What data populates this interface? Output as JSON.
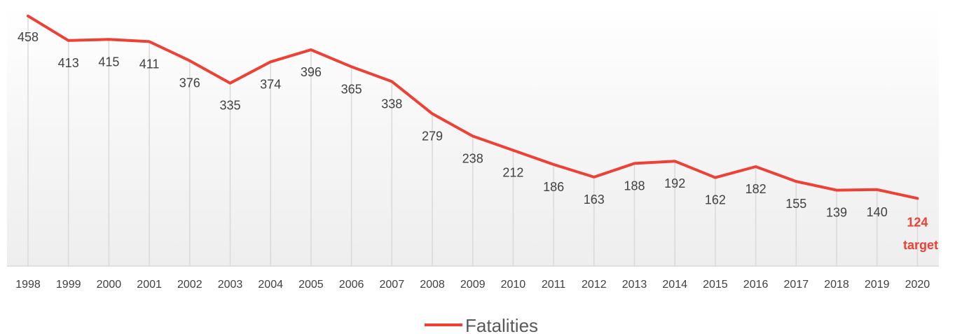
{
  "chart_data": {
    "type": "line",
    "title": "",
    "xlabel": "",
    "ylabel": "",
    "categories": [
      "1998",
      "1999",
      "2000",
      "2001",
      "2002",
      "2003",
      "2004",
      "2005",
      "2006",
      "2007",
      "2008",
      "2009",
      "2010",
      "2011",
      "2012",
      "2013",
      "2014",
      "2015",
      "2016",
      "2017",
      "2018",
      "2019",
      "2020"
    ],
    "series": [
      {
        "name": "Fatalities",
        "color": "#ee4035",
        "values": [
          458,
          413,
          415,
          411,
          376,
          335,
          374,
          396,
          365,
          338,
          279,
          238,
          212,
          186,
          163,
          188,
          192,
          162,
          182,
          155,
          139,
          140,
          124
        ]
      }
    ],
    "data_labels": [
      "458",
      "413",
      "415",
      "411",
      "376",
      "335",
      "374",
      "396",
      "365",
      "338",
      "279",
      "238",
      "212",
      "186",
      "163",
      "188",
      "192",
      "162",
      "182",
      "155",
      "139",
      "140",
      "124"
    ],
    "target_annotation": "target",
    "ylim": [
      0,
      470
    ],
    "grid": "vertical",
    "legend_position": "bottom"
  }
}
